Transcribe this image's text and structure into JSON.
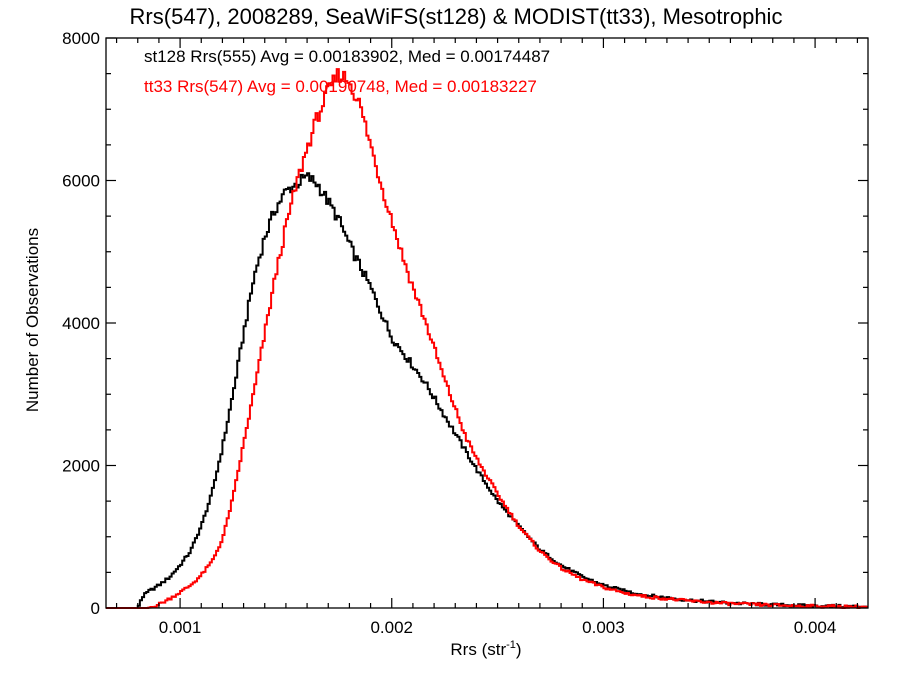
{
  "chart_data": {
    "type": "line",
    "title": "Rrs(547), 2008289, SeaWiFS(st128) & MODIST(tt33), Mesotrophic",
    "xlabel_main": "Rrs (str",
    "xlabel_sup": "-1",
    "xlabel_close": ")",
    "ylabel": "Number of Observations",
    "xlim": [
      0.00065,
      0.00425
    ],
    "ylim": [
      0,
      8000
    ],
    "x_ticks": [
      0.001,
      0.002,
      0.003,
      0.004
    ],
    "x_tick_labels": [
      "0.001",
      "0.002",
      "0.003",
      "0.004"
    ],
    "y_ticks": [
      0,
      2000,
      4000,
      6000,
      8000
    ],
    "y_tick_labels": [
      "0",
      "2000",
      "4000",
      "6000",
      "8000"
    ],
    "annotations": [
      {
        "text": "st128 Rrs(555) Avg = 0.00183902, Med = 0.00174487",
        "color": "#000000"
      },
      {
        "text": "tt33 Rrs(547) Avg = 0.00190748, Med = 0.00183227",
        "color": "#ff0000"
      }
    ],
    "series": [
      {
        "color": "#000000",
        "x": [
          0.00065,
          0.00075,
          0.0008,
          0.00082,
          0.00085,
          0.0009,
          0.00095,
          0.001,
          0.00105,
          0.0011,
          0.00115,
          0.0012,
          0.00125,
          0.0013,
          0.00135,
          0.0014,
          0.00145,
          0.0015,
          0.00155,
          0.0016,
          0.00165,
          0.0017,
          0.00175,
          0.0018,
          0.00185,
          0.0019,
          0.00195,
          0.002,
          0.00205,
          0.0021,
          0.00215,
          0.0022,
          0.00225,
          0.0023,
          0.00235,
          0.0024,
          0.0025,
          0.0026,
          0.0027,
          0.0028,
          0.0029,
          0.003,
          0.0031,
          0.0032,
          0.0034,
          0.0036,
          0.0038,
          0.004,
          0.00425
        ],
        "y": [
          0,
          0,
          0,
          150,
          230,
          320,
          430,
          600,
          800,
          1150,
          1600,
          2250,
          3000,
          3850,
          4650,
          5200,
          5600,
          5850,
          5950,
          6050,
          5950,
          5700,
          5450,
          5100,
          4800,
          4500,
          4150,
          3800,
          3600,
          3400,
          3200,
          2950,
          2700,
          2450,
          2200,
          1950,
          1500,
          1150,
          820,
          600,
          440,
          320,
          240,
          180,
          110,
          70,
          45,
          30,
          20
        ]
      },
      {
        "color": "#ff0000",
        "x": [
          0.00065,
          0.00085,
          0.0009,
          0.00095,
          0.001,
          0.00105,
          0.0011,
          0.00115,
          0.0012,
          0.00125,
          0.0013,
          0.00135,
          0.0014,
          0.00145,
          0.0015,
          0.00155,
          0.0016,
          0.00165,
          0.0017,
          0.00175,
          0.0018,
          0.00185,
          0.0019,
          0.00195,
          0.002,
          0.00205,
          0.0021,
          0.00215,
          0.0022,
          0.00225,
          0.0023,
          0.00235,
          0.0024,
          0.0025,
          0.0026,
          0.0027,
          0.0028,
          0.0029,
          0.003,
          0.0031,
          0.0032,
          0.0034,
          0.0036,
          0.0038,
          0.004,
          0.00425
        ],
        "y": [
          0,
          0,
          50,
          130,
          220,
          320,
          460,
          650,
          960,
          1550,
          2300,
          3050,
          3850,
          4650,
          5350,
          5950,
          6450,
          6900,
          7250,
          7500,
          7400,
          7050,
          6500,
          5950,
          5450,
          4950,
          4500,
          4100,
          3650,
          3200,
          2800,
          2400,
          2100,
          1600,
          1150,
          800,
          560,
          400,
          290,
          210,
          160,
          100,
          60,
          40,
          25,
          15
        ]
      }
    ]
  }
}
